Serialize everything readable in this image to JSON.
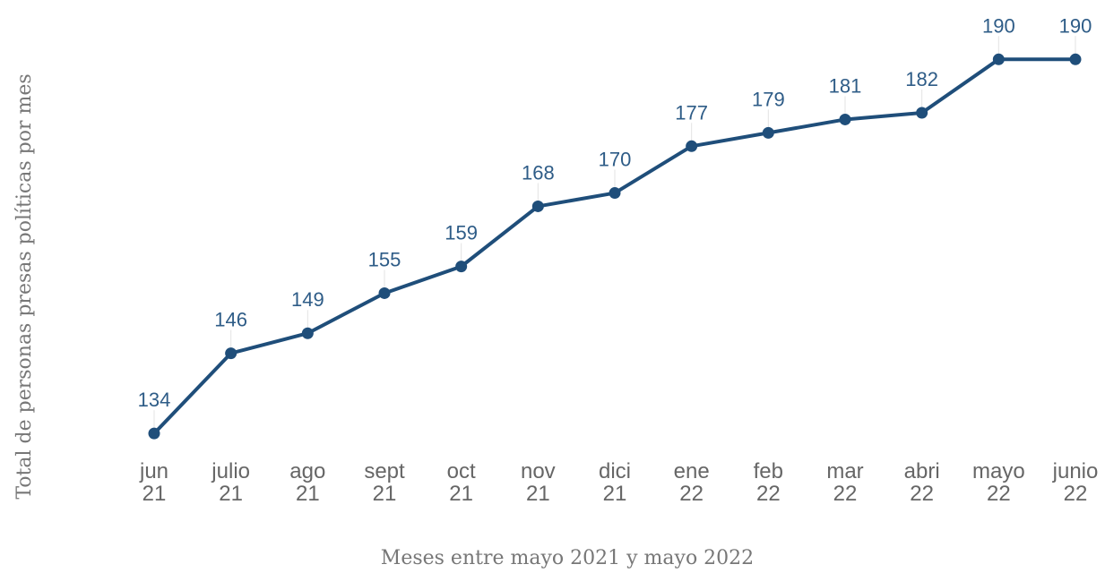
{
  "chart_data": {
    "type": "line",
    "y_axis_label": "Total de personas presas políticas por mes",
    "x_axis_label": "Meses entre mayo 2021 y mayo 2022",
    "categories": [
      "jun 21",
      "julio 21",
      "ago 21",
      "sept 21",
      "oct 21",
      "nov 21",
      "dici 21",
      "ene 22",
      "feb 22",
      "mar 22",
      "abri 22",
      "mayo 22",
      "junio 22"
    ],
    "series": [
      {
        "name": null,
        "color": "#1f4e7a",
        "values": [
          134,
          146,
          149,
          155,
          159,
          168,
          170,
          177,
          179,
          181,
          182,
          190,
          190
        ]
      }
    ],
    "ylim": [
      130,
      195
    ]
  }
}
